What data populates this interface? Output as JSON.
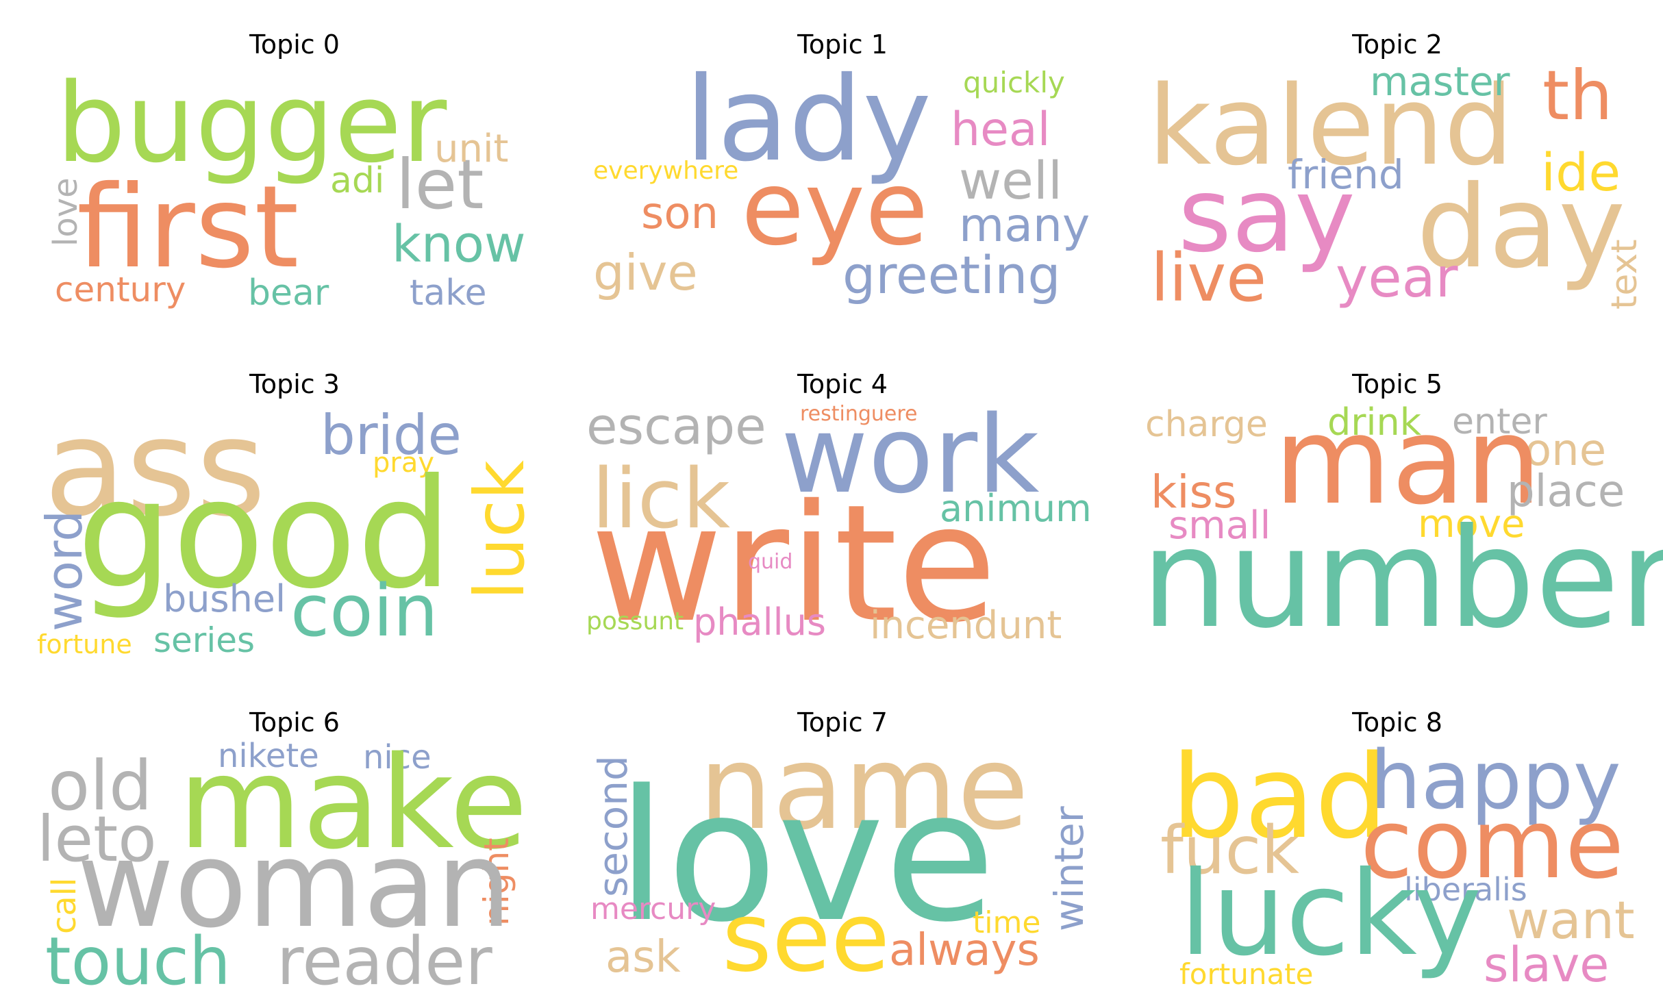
{
  "palette": {
    "green": "#a6d854",
    "orange": "#ee8d62",
    "teal": "#66c2a5",
    "blue": "#8da0cb",
    "pink": "#e78ac3",
    "yellow": "#ffd92f",
    "tan": "#e5c494",
    "gray": "#b3b3b3"
  },
  "panels": [
    {
      "title": "Topic 0",
      "words": [
        {
          "text": "bugger",
          "color": "#a6d854"
        },
        {
          "text": "first",
          "color": "#ee8d62"
        },
        {
          "text": "let",
          "color": "#b3b3b3"
        },
        {
          "text": "know",
          "color": "#66c2a5"
        },
        {
          "text": "unit",
          "color": "#e5c494"
        },
        {
          "text": "adi",
          "color": "#a6d854"
        },
        {
          "text": "love",
          "color": "#b3b3b3"
        },
        {
          "text": "century",
          "color": "#ee8d62"
        },
        {
          "text": "bear",
          "color": "#66c2a5"
        },
        {
          "text": "take",
          "color": "#8da0cb"
        }
      ]
    },
    {
      "title": "Topic 1",
      "words": [
        {
          "text": "lady",
          "color": "#8da0cb"
        },
        {
          "text": "eye",
          "color": "#ee8d62"
        },
        {
          "text": "quickly",
          "color": "#a6d854"
        },
        {
          "text": "heal",
          "color": "#e78ac3"
        },
        {
          "text": "well",
          "color": "#b3b3b3"
        },
        {
          "text": "everywhere",
          "color": "#ffd92f"
        },
        {
          "text": "son",
          "color": "#ee8d62"
        },
        {
          "text": "many",
          "color": "#8da0cb"
        },
        {
          "text": "give",
          "color": "#e5c494"
        },
        {
          "text": "greeting",
          "color": "#8da0cb"
        }
      ]
    },
    {
      "title": "Topic 2",
      "words": [
        {
          "text": "kalend",
          "color": "#e5c494"
        },
        {
          "text": "master",
          "color": "#66c2a5"
        },
        {
          "text": "th",
          "color": "#ee8d62"
        },
        {
          "text": "friend",
          "color": "#8da0cb"
        },
        {
          "text": "ide",
          "color": "#ffd92f"
        },
        {
          "text": "say",
          "color": "#e78ac3"
        },
        {
          "text": "day",
          "color": "#e5c494"
        },
        {
          "text": "live",
          "color": "#ee8d62"
        },
        {
          "text": "year",
          "color": "#e78ac3"
        },
        {
          "text": "text",
          "color": "#e5c494"
        }
      ]
    },
    {
      "title": "Topic 3",
      "words": [
        {
          "text": "ass",
          "color": "#e5c494"
        },
        {
          "text": "bride",
          "color": "#8da0cb"
        },
        {
          "text": "luck",
          "color": "#ffd92f"
        },
        {
          "text": "pray",
          "color": "#ffd92f"
        },
        {
          "text": "good",
          "color": "#a6d854"
        },
        {
          "text": "word",
          "color": "#8da0cb"
        },
        {
          "text": "bushel",
          "color": "#8da0cb"
        },
        {
          "text": "coin",
          "color": "#66c2a5"
        },
        {
          "text": "fortune",
          "color": "#ffd92f"
        },
        {
          "text": "series",
          "color": "#66c2a5"
        }
      ]
    },
    {
      "title": "Topic 4",
      "words": [
        {
          "text": "escape",
          "color": "#b3b3b3"
        },
        {
          "text": "restinguere",
          "color": "#ee8d62"
        },
        {
          "text": "work",
          "color": "#8da0cb"
        },
        {
          "text": "lick",
          "color": "#e5c494"
        },
        {
          "text": "animum",
          "color": "#66c2a5"
        },
        {
          "text": "write",
          "color": "#ee8d62"
        },
        {
          "text": "quid",
          "color": "#e78ac3"
        },
        {
          "text": "possunt",
          "color": "#a6d854"
        },
        {
          "text": "phallus",
          "color": "#e78ac3"
        },
        {
          "text": "incendunt",
          "color": "#e5c494"
        }
      ]
    },
    {
      "title": "Topic 5",
      "words": [
        {
          "text": "charge",
          "color": "#e5c494"
        },
        {
          "text": "drink",
          "color": "#a6d854"
        },
        {
          "text": "enter",
          "color": "#b3b3b3"
        },
        {
          "text": "one",
          "color": "#e5c494"
        },
        {
          "text": "man",
          "color": "#ee8d62"
        },
        {
          "text": "kiss",
          "color": "#ee8d62"
        },
        {
          "text": "place",
          "color": "#b3b3b3"
        },
        {
          "text": "small",
          "color": "#e78ac3"
        },
        {
          "text": "move",
          "color": "#ffd92f"
        },
        {
          "text": "number",
          "color": "#66c2a5"
        }
      ]
    },
    {
      "title": "Topic 6",
      "words": [
        {
          "text": "old",
          "color": "#b3b3b3"
        },
        {
          "text": "nikete",
          "color": "#8da0cb"
        },
        {
          "text": "nice",
          "color": "#8da0cb"
        },
        {
          "text": "make",
          "color": "#a6d854"
        },
        {
          "text": "leto",
          "color": "#b3b3b3"
        },
        {
          "text": "night",
          "color": "#ee8d62"
        },
        {
          "text": "call",
          "color": "#ffd92f"
        },
        {
          "text": "woman",
          "color": "#b3b3b3"
        },
        {
          "text": "touch",
          "color": "#66c2a5"
        },
        {
          "text": "reader",
          "color": "#b3b3b3"
        }
      ]
    },
    {
      "title": "Topic 7",
      "words": [
        {
          "text": "name",
          "color": "#e5c494"
        },
        {
          "text": "second",
          "color": "#8da0cb"
        },
        {
          "text": "love",
          "color": "#66c2a5"
        },
        {
          "text": "winter",
          "color": "#8da0cb"
        },
        {
          "text": "mercury",
          "color": "#e78ac3"
        },
        {
          "text": "time",
          "color": "#ffd92f"
        },
        {
          "text": "see",
          "color": "#ffd92f"
        },
        {
          "text": "ask",
          "color": "#e5c494"
        },
        {
          "text": "always",
          "color": "#ee8d62"
        }
      ]
    },
    {
      "title": "Topic 8",
      "words": [
        {
          "text": "bad",
          "color": "#ffd92f"
        },
        {
          "text": "happy",
          "color": "#8da0cb"
        },
        {
          "text": "fuck",
          "color": "#e5c494"
        },
        {
          "text": "come",
          "color": "#ee8d62"
        },
        {
          "text": "liberalis",
          "color": "#8da0cb"
        },
        {
          "text": "want",
          "color": "#e5c494"
        },
        {
          "text": "lucky",
          "color": "#66c2a5"
        },
        {
          "text": "fortunate",
          "color": "#ffd92f"
        },
        {
          "text": "slave",
          "color": "#e78ac3"
        }
      ]
    }
  ]
}
